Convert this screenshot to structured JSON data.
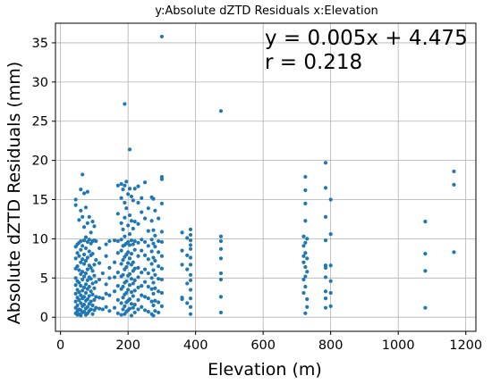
{
  "chart_data": {
    "type": "scatter",
    "title": "y:Absolute dZTD Residuals     x:Elevation",
    "xlabel": "Elevation (m)",
    "ylabel": "Absolute dZTD Residuals (mm)",
    "xlim": [
      -15,
      1230
    ],
    "ylim": [
      -1.8,
      37.5
    ],
    "xticks": [
      0,
      200,
      400,
      600,
      800,
      1000,
      1200
    ],
    "yticks": [
      0,
      5,
      10,
      15,
      20,
      25,
      30,
      35
    ],
    "grid": true,
    "legend": "none",
    "marker_color": "#1f77b4",
    "annotations": [
      "y = 0.005x + 4.475",
      "r = 0.218"
    ],
    "points": [
      [
        45,
        15.0
      ],
      [
        45,
        14.3
      ],
      [
        45,
        9.0
      ],
      [
        45,
        7.5
      ],
      [
        45,
        6.2
      ],
      [
        45,
        5.0
      ],
      [
        45,
        4.1
      ],
      [
        45,
        3.0
      ],
      [
        45,
        2.0
      ],
      [
        45,
        1.2
      ],
      [
        45,
        0.5
      ],
      [
        50,
        9.3
      ],
      [
        50,
        8.2
      ],
      [
        50,
        6.5
      ],
      [
        50,
        4.6
      ],
      [
        50,
        3.5
      ],
      [
        50,
        2.5
      ],
      [
        50,
        1.5
      ],
      [
        50,
        0.8
      ],
      [
        50,
        0.3
      ],
      [
        55,
        12.4
      ],
      [
        55,
        9.5
      ],
      [
        55,
        7.8
      ],
      [
        55,
        6.0
      ],
      [
        55,
        4.4
      ],
      [
        55,
        3.2
      ],
      [
        55,
        2.2
      ],
      [
        55,
        1.0
      ],
      [
        55,
        0.4
      ],
      [
        60,
        16.3
      ],
      [
        60,
        13.6
      ],
      [
        60,
        9.7
      ],
      [
        60,
        8.6
      ],
      [
        60,
        7.0
      ],
      [
        60,
        5.5
      ],
      [
        60,
        4.0
      ],
      [
        60,
        2.8
      ],
      [
        60,
        1.8
      ],
      [
        60,
        0.9
      ],
      [
        60,
        0.2
      ],
      [
        65,
        18.2
      ],
      [
        65,
        12.8
      ],
      [
        65,
        9.1
      ],
      [
        65,
        7.4
      ],
      [
        65,
        5.8
      ],
      [
        65,
        4.8
      ],
      [
        65,
        3.4
      ],
      [
        65,
        2.4
      ],
      [
        65,
        1.4
      ],
      [
        65,
        0.6
      ],
      [
        70,
        15.8
      ],
      [
        70,
        11.5
      ],
      [
        70,
        9.8
      ],
      [
        70,
        8.0
      ],
      [
        70,
        6.8
      ],
      [
        70,
        5.2
      ],
      [
        70,
        3.8
      ],
      [
        70,
        2.6
      ],
      [
        70,
        1.6
      ],
      [
        70,
        0.7
      ],
      [
        75,
        14.0
      ],
      [
        75,
        10.2
      ],
      [
        75,
        8.8
      ],
      [
        75,
        7.2
      ],
      [
        75,
        5.6
      ],
      [
        75,
        4.2
      ],
      [
        75,
        3.1
      ],
      [
        75,
        2.1
      ],
      [
        75,
        1.1
      ],
      [
        75,
        0.3
      ],
      [
        80,
        16.0
      ],
      [
        80,
        12.0
      ],
      [
        80,
        9.6
      ],
      [
        80,
        7.6
      ],
      [
        80,
        6.1
      ],
      [
        80,
        4.7
      ],
      [
        80,
        3.6
      ],
      [
        80,
        2.3
      ],
      [
        80,
        1.3
      ],
      [
        80,
        0.5
      ],
      [
        85,
        12.8
      ],
      [
        85,
        9.9
      ],
      [
        85,
        8.4
      ],
      [
        85,
        6.6
      ],
      [
        85,
        5.1
      ],
      [
        85,
        3.9
      ],
      [
        85,
        2.7
      ],
      [
        85,
        1.7
      ],
      [
        85,
        0.8
      ],
      [
        90,
        10.8
      ],
      [
        90,
        9.4
      ],
      [
        90,
        7.9
      ],
      [
        90,
        6.3
      ],
      [
        90,
        4.9
      ],
      [
        90,
        3.3
      ],
      [
        90,
        2.0
      ],
      [
        90,
        1.0
      ],
      [
        95,
        12.2
      ],
      [
        95,
        9.7
      ],
      [
        95,
        8.1
      ],
      [
        95,
        5.9
      ],
      [
        95,
        4.3
      ],
      [
        95,
        2.9
      ],
      [
        95,
        1.5
      ],
      [
        95,
        0.4
      ],
      [
        100,
        11.6
      ],
      [
        100,
        9.8
      ],
      [
        100,
        6.7
      ],
      [
        100,
        5.3
      ],
      [
        100,
        3.7
      ],
      [
        100,
        2.2
      ],
      [
        100,
        0.9
      ],
      [
        105,
        9.7
      ],
      [
        105,
        7.3
      ],
      [
        105,
        4.5
      ],
      [
        105,
        2.6
      ],
      [
        105,
        1.2
      ],
      [
        115,
        8.8
      ],
      [
        115,
        6.9
      ],
      [
        115,
        4.8
      ],
      [
        115,
        2.5
      ],
      [
        115,
        1.1
      ],
      [
        125,
        5.6
      ],
      [
        125,
        2.4
      ],
      [
        125,
        1.0
      ],
      [
        135,
        9.3
      ],
      [
        135,
        7.8
      ],
      [
        135,
        4.2
      ],
      [
        135,
        3.0
      ],
      [
        135,
        1.3
      ],
      [
        145,
        9.7
      ],
      [
        145,
        6.3
      ],
      [
        145,
        5.0
      ],
      [
        145,
        2.8
      ],
      [
        145,
        0.8
      ],
      [
        160,
        9.8
      ],
      [
        160,
        7.0
      ],
      [
        160,
        5.1
      ],
      [
        160,
        3.3
      ],
      [
        160,
        1.2
      ],
      [
        170,
        16.8
      ],
      [
        170,
        13.2
      ],
      [
        170,
        9.7
      ],
      [
        170,
        8.2
      ],
      [
        170,
        5.7
      ],
      [
        170,
        4.0
      ],
      [
        170,
        2.2
      ],
      [
        170,
        0.5
      ],
      [
        180,
        17.0
      ],
      [
        180,
        15.2
      ],
      [
        180,
        12.0
      ],
      [
        180,
        9.9
      ],
      [
        180,
        8.5
      ],
      [
        180,
        6.8
      ],
      [
        180,
        5.2
      ],
      [
        180,
        3.6
      ],
      [
        180,
        1.8
      ],
      [
        180,
        0.3
      ],
      [
        185,
        16.3
      ],
      [
        185,
        11.2
      ],
      [
        185,
        9.1
      ],
      [
        185,
        7.3
      ],
      [
        185,
        5.4
      ],
      [
        185,
        3.9
      ],
      [
        185,
        2.5
      ],
      [
        185,
        1.0
      ],
      [
        190,
        27.2
      ],
      [
        190,
        16.8
      ],
      [
        190,
        14.6
      ],
      [
        190,
        12.7
      ],
      [
        190,
        10.3
      ],
      [
        190,
        9.2
      ],
      [
        190,
        7.7
      ],
      [
        190,
        6.1
      ],
      [
        190,
        4.4
      ],
      [
        190,
        2.9
      ],
      [
        190,
        1.4
      ],
      [
        190,
        0.4
      ],
      [
        195,
        17.3
      ],
      [
        195,
        13.9
      ],
      [
        195,
        9.4
      ],
      [
        195,
        8.0
      ],
      [
        195,
        6.4
      ],
      [
        195,
        4.6
      ],
      [
        195,
        3.1
      ],
      [
        195,
        1.9
      ],
      [
        195,
        0.7
      ],
      [
        200,
        15.7
      ],
      [
        200,
        11.7
      ],
      [
        200,
        9.6
      ],
      [
        200,
        8.3
      ],
      [
        200,
        6.9
      ],
      [
        200,
        5.3
      ],
      [
        200,
        3.5
      ],
      [
        200,
        2.1
      ],
      [
        200,
        0.9
      ],
      [
        205,
        21.4
      ],
      [
        205,
        16.4
      ],
      [
        205,
        13.0
      ],
      [
        205,
        10.6
      ],
      [
        205,
        9.2
      ],
      [
        205,
        7.5
      ],
      [
        205,
        5.5
      ],
      [
        205,
        4.1
      ],
      [
        205,
        2.3
      ],
      [
        205,
        1.1
      ],
      [
        210,
        15.4
      ],
      [
        210,
        12.3
      ],
      [
        210,
        9.8
      ],
      [
        210,
        8.1
      ],
      [
        210,
        6.7
      ],
      [
        210,
        4.9
      ],
      [
        210,
        3.2
      ],
      [
        210,
        1.7
      ],
      [
        210,
        0.2
      ],
      [
        215,
        14.9
      ],
      [
        215,
        11.3
      ],
      [
        215,
        9.3
      ],
      [
        215,
        7.0
      ],
      [
        215,
        5.9
      ],
      [
        215,
        4.3
      ],
      [
        215,
        2.7
      ],
      [
        215,
        1.2
      ],
      [
        220,
        16.4
      ],
      [
        220,
        12.2
      ],
      [
        220,
        9.7
      ],
      [
        220,
        8.6
      ],
      [
        220,
        6.2
      ],
      [
        220,
        4.7
      ],
      [
        220,
        3.4
      ],
      [
        220,
        1.6
      ],
      [
        220,
        0.6
      ],
      [
        230,
        16.7
      ],
      [
        230,
        14.6
      ],
      [
        230,
        11.9
      ],
      [
        230,
        9.5
      ],
      [
        230,
        7.8
      ],
      [
        230,
        6.3
      ],
      [
        230,
        5.1
      ],
      [
        230,
        3.8
      ],
      [
        230,
        2.2
      ],
      [
        230,
        1.0
      ],
      [
        240,
        15.2
      ],
      [
        240,
        13.4
      ],
      [
        240,
        9.9
      ],
      [
        240,
        8.5
      ],
      [
        240,
        5.7
      ],
      [
        240,
        4.0
      ],
      [
        240,
        2.8
      ],
      [
        240,
        1.3
      ],
      [
        250,
        17.2
      ],
      [
        250,
        12.6
      ],
      [
        250,
        9.6
      ],
      [
        250,
        7.9
      ],
      [
        250,
        6.1
      ],
      [
        250,
        4.5
      ],
      [
        250,
        2.6
      ],
      [
        250,
        0.9
      ],
      [
        260,
        13.9
      ],
      [
        260,
        11.0
      ],
      [
        260,
        9.1
      ],
      [
        260,
        7.4
      ],
      [
        260,
        5.6
      ],
      [
        260,
        3.9
      ],
      [
        260,
        2.4
      ],
      [
        260,
        0.7
      ],
      [
        270,
        15.3
      ],
      [
        270,
        12.3
      ],
      [
        270,
        9.9
      ],
      [
        270,
        8.4
      ],
      [
        270,
        6.8
      ],
      [
        270,
        5.0
      ],
      [
        270,
        3.6
      ],
      [
        270,
        2.0
      ],
      [
        270,
        0.4
      ],
      [
        275,
        15.1
      ],
      [
        275,
        11.1
      ],
      [
        275,
        9.4
      ],
      [
        275,
        7.6
      ],
      [
        275,
        6.0
      ],
      [
        275,
        4.4
      ],
      [
        275,
        3.0
      ],
      [
        275,
        1.5
      ],
      [
        275,
        0.2
      ],
      [
        280,
        13.6
      ],
      [
        280,
        10.4
      ],
      [
        280,
        9.0
      ],
      [
        280,
        7.2
      ],
      [
        280,
        5.4
      ],
      [
        280,
        3.7
      ],
      [
        280,
        2.1
      ],
      [
        280,
        0.8
      ],
      [
        290,
        12.6
      ],
      [
        290,
        9.7
      ],
      [
        290,
        8.3
      ],
      [
        290,
        6.5
      ],
      [
        290,
        4.9
      ],
      [
        290,
        3.3
      ],
      [
        290,
        1.9
      ],
      [
        290,
        0.6
      ],
      [
        300,
        35.8
      ],
      [
        300,
        17.9
      ],
      [
        300,
        17.6
      ],
      [
        300,
        14.5
      ],
      [
        300,
        10.9
      ],
      [
        300,
        9.6
      ],
      [
        300,
        7.8
      ],
      [
        300,
        6.2
      ],
      [
        300,
        4.8
      ],
      [
        300,
        3.1
      ],
      [
        300,
        1.4
      ],
      [
        360,
        10.8
      ],
      [
        360,
        8.5
      ],
      [
        360,
        6.7
      ],
      [
        360,
        2.5
      ],
      [
        360,
        2.3
      ],
      [
        375,
        10.1
      ],
      [
        375,
        7.9
      ],
      [
        375,
        6.1
      ],
      [
        375,
        4.3
      ],
      [
        375,
        1.8
      ],
      [
        385,
        11.2
      ],
      [
        385,
        10.5
      ],
      [
        385,
        9.8
      ],
      [
        385,
        9.2
      ],
      [
        385,
        8.7
      ],
      [
        385,
        7.6
      ],
      [
        385,
        6.7
      ],
      [
        385,
        5.4
      ],
      [
        385,
        4.7
      ],
      [
        385,
        3.5
      ],
      [
        385,
        2.4
      ],
      [
        385,
        1.3
      ],
      [
        385,
        0.4
      ],
      [
        475,
        26.3
      ],
      [
        475,
        10.3
      ],
      [
        475,
        9.7
      ],
      [
        475,
        8.7
      ],
      [
        475,
        7.5
      ],
      [
        475,
        5.6
      ],
      [
        475,
        4.8
      ],
      [
        475,
        2.6
      ],
      [
        475,
        0.6
      ],
      [
        720,
        10.3
      ],
      [
        720,
        9.1
      ],
      [
        720,
        7.8
      ],
      [
        720,
        7.0
      ],
      [
        720,
        4.8
      ],
      [
        720,
        3.1
      ],
      [
        725,
        17.9
      ],
      [
        725,
        16.2
      ],
      [
        725,
        14.5
      ],
      [
        725,
        12.3
      ],
      [
        725,
        9.5
      ],
      [
        725,
        8.2
      ],
      [
        725,
        6.4
      ],
      [
        725,
        5.2
      ],
      [
        725,
        3.9
      ],
      [
        725,
        0.5
      ],
      [
        730,
        10.0
      ],
      [
        730,
        7.5
      ],
      [
        730,
        5.8
      ],
      [
        730,
        2.3
      ],
      [
        730,
        1.3
      ],
      [
        785,
        19.7
      ],
      [
        785,
        16.5
      ],
      [
        785,
        12.8
      ],
      [
        785,
        9.8
      ],
      [
        785,
        6.6
      ],
      [
        785,
        6.3
      ],
      [
        785,
        5.1
      ],
      [
        785,
        3.3
      ],
      [
        785,
        2.4
      ],
      [
        785,
        1.2
      ],
      [
        800,
        15.0
      ],
      [
        800,
        10.6
      ],
      [
        800,
        6.6
      ],
      [
        800,
        4.6
      ],
      [
        800,
        3.1
      ],
      [
        800,
        1.4
      ],
      [
        1080,
        12.2
      ],
      [
        1080,
        8.1
      ],
      [
        1080,
        5.9
      ],
      [
        1080,
        1.2
      ],
      [
        1165,
        18.6
      ],
      [
        1165,
        16.9
      ],
      [
        1165,
        8.3
      ]
    ]
  }
}
